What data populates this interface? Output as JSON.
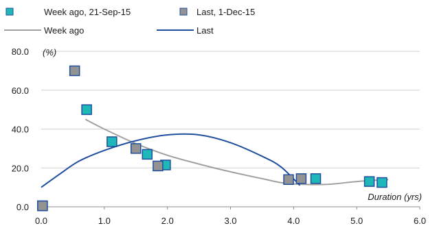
{
  "chart_data": {
    "type": "scatter",
    "title": "",
    "xlabel": "Duration (yrs)",
    "ylabel": "(%)",
    "xlim": [
      0,
      6
    ],
    "ylim": [
      0,
      80
    ],
    "x_ticks": [
      "0.0",
      "1.0",
      "2.0",
      "3.0",
      "4.0",
      "5.0",
      "6.0"
    ],
    "y_ticks": [
      "0.0",
      "20.0",
      "40.0",
      "60.0",
      "80.0"
    ],
    "grid": "horizontal",
    "legend_position": "top",
    "series": [
      {
        "name": "Week ago, 21-Sep-15",
        "kind": "points",
        "color": "#1fb8b8",
        "border": "#1f4e9e",
        "points": [
          [
            0.02,
            0.5
          ],
          [
            0.72,
            50
          ],
          [
            1.12,
            33.5
          ],
          [
            1.68,
            27
          ],
          [
            1.97,
            21.5
          ],
          [
            4.35,
            14.5
          ],
          [
            5.2,
            13
          ],
          [
            5.4,
            12.5
          ]
        ]
      },
      {
        "name": "Last, 1-Dec-15",
        "kind": "points",
        "color": "#939393",
        "border": "#1f4e9e",
        "points": [
          [
            0.02,
            0.5
          ],
          [
            0.53,
            70
          ],
          [
            1.5,
            30
          ],
          [
            1.85,
            21
          ],
          [
            3.92,
            14
          ],
          [
            4.12,
            14.5
          ]
        ]
      },
      {
        "name": "Week ago",
        "kind": "line",
        "color": "#a0a0a0",
        "points": [
          [
            0.7,
            45
          ],
          [
            1.0,
            40
          ],
          [
            1.5,
            32.5
          ],
          [
            2.0,
            26.5
          ],
          [
            2.5,
            22
          ],
          [
            3.0,
            18
          ],
          [
            3.5,
            14.5
          ],
          [
            3.9,
            12
          ],
          [
            4.5,
            11.5
          ],
          [
            5.0,
            13
          ],
          [
            5.5,
            14
          ]
        ]
      },
      {
        "name": "Last",
        "kind": "line",
        "color": "#1f4e9e",
        "points": [
          [
            0.0,
            10
          ],
          [
            0.3,
            17
          ],
          [
            0.6,
            23.5
          ],
          [
            1.0,
            29
          ],
          [
            1.5,
            34
          ],
          [
            2.0,
            37
          ],
          [
            2.5,
            37
          ],
          [
            3.0,
            33
          ],
          [
            3.5,
            26
          ],
          [
            3.8,
            20.5
          ],
          [
            4.1,
            11
          ]
        ]
      }
    ]
  }
}
